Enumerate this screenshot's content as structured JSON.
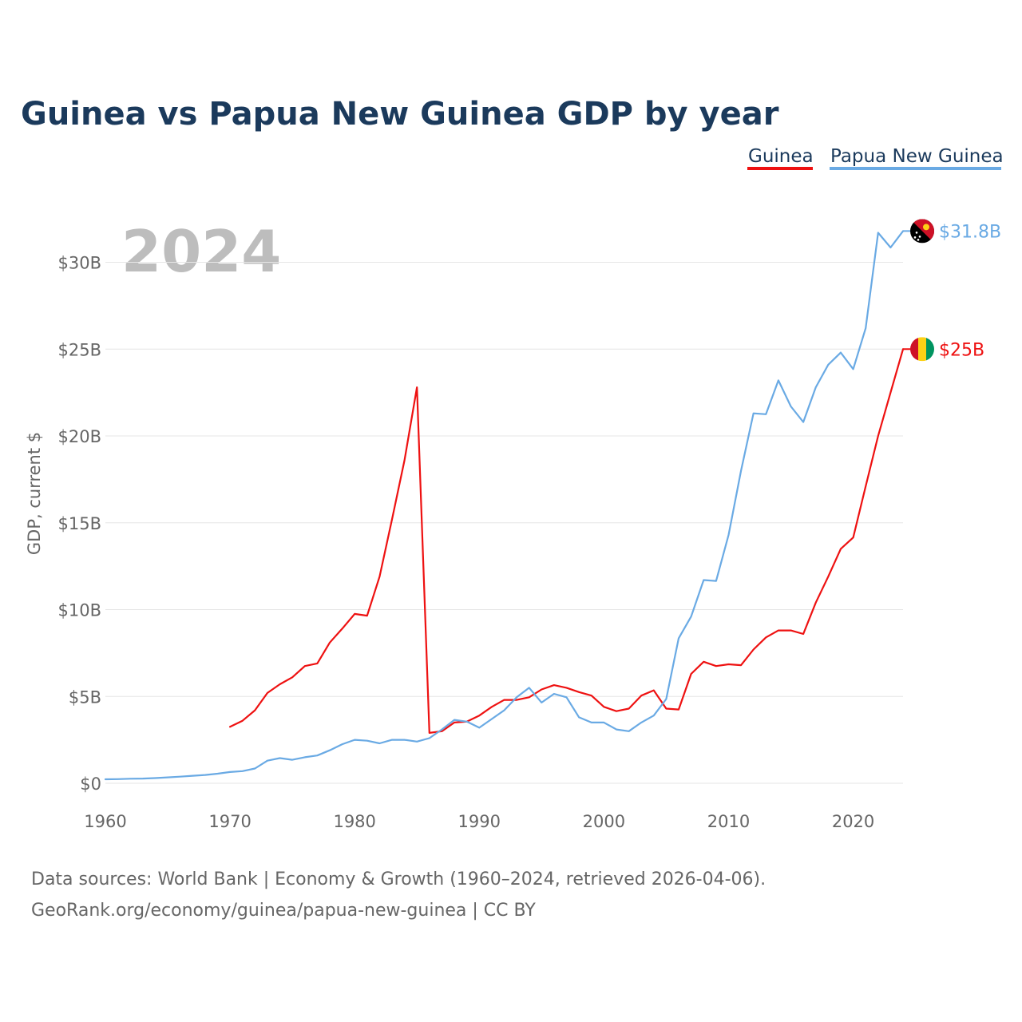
{
  "title": "Guinea vs Papua New Guinea GDP by year",
  "highlight_year": "2024",
  "footer": {
    "line1": "Data sources: World Bank | Economy & Growth (1960–2024, retrieved 2026-04-06).",
    "line2": "GeoRank.org/economy/guinea/papua-new-guinea | CC BY"
  },
  "colors": {
    "guinea": "#ee1111",
    "png": "#6aaae4",
    "title": "#1b3a5c",
    "grid": "#e6e6e6",
    "tick": "#666666"
  },
  "chart_data": {
    "type": "line",
    "title": "Guinea vs Papua New Guinea GDP by year",
    "xlabel": "",
    "ylabel": "GDP, current $",
    "xlim": [
      1960,
      2024
    ],
    "ylim": [
      0,
      32
    ],
    "x_ticks": [
      1960,
      1970,
      1980,
      1990,
      2000,
      2010,
      2020
    ],
    "x_tick_labels": [
      "1960",
      "1970",
      "1980",
      "1990",
      "2000",
      "2010",
      "2020"
    ],
    "y_ticks": [
      0,
      5,
      10,
      15,
      20,
      25,
      30
    ],
    "y_tick_labels": [
      "$0",
      "$5B",
      "$10B",
      "$15B",
      "$20B",
      "$25B",
      "$30B"
    ],
    "legend_position": "top-right",
    "units": "billions of current US$",
    "series": [
      {
        "name": "Guinea",
        "color": "#ee1111",
        "end_label": "$25B",
        "flag": "guinea",
        "x": [
          1970,
          1971,
          1972,
          1973,
          1974,
          1975,
          1976,
          1977,
          1978,
          1979,
          1980,
          1981,
          1982,
          1983,
          1984,
          1985,
          1986,
          1987,
          1988,
          1989,
          1990,
          1991,
          1992,
          1993,
          1994,
          1995,
          1996,
          1997,
          1998,
          1999,
          2000,
          2001,
          2002,
          2003,
          2004,
          2005,
          2006,
          2007,
          2008,
          2009,
          2010,
          2011,
          2012,
          2013,
          2014,
          2015,
          2016,
          2017,
          2018,
          2019,
          2020,
          2021,
          2022,
          2023,
          2024
        ],
        "values": [
          3.25,
          3.6,
          4.2,
          5.2,
          5.7,
          6.1,
          6.75,
          6.9,
          8.1,
          8.9,
          9.75,
          9.65,
          11.9,
          15.2,
          18.6,
          22.8,
          2.9,
          3.0,
          3.5,
          3.55,
          3.9,
          4.4,
          4.8,
          4.8,
          4.95,
          5.4,
          5.65,
          5.5,
          5.25,
          5.05,
          4.4,
          4.15,
          4.3,
          5.05,
          5.35,
          4.3,
          4.25,
          6.3,
          7.0,
          6.75,
          6.85,
          6.8,
          7.7,
          8.4,
          8.8,
          8.8,
          8.6,
          10.4,
          11.9,
          13.5,
          14.15,
          17.1,
          20.0,
          22.5,
          25.0
        ]
      },
      {
        "name": "Papua New Guinea",
        "color": "#6aaae4",
        "end_label": "$31.8B",
        "flag": "papua-new-guinea",
        "x": [
          1960,
          1961,
          1962,
          1963,
          1964,
          1965,
          1966,
          1967,
          1968,
          1969,
          1970,
          1971,
          1972,
          1973,
          1974,
          1975,
          1976,
          1977,
          1978,
          1979,
          1980,
          1981,
          1982,
          1983,
          1984,
          1985,
          1986,
          1987,
          1988,
          1989,
          1990,
          1991,
          1992,
          1993,
          1994,
          1995,
          1996,
          1997,
          1998,
          1999,
          2000,
          2001,
          2002,
          2003,
          2004,
          2005,
          2006,
          2007,
          2008,
          2009,
          2010,
          2011,
          2012,
          2013,
          2014,
          2015,
          2016,
          2017,
          2018,
          2019,
          2020,
          2021,
          2022,
          2023,
          2024
        ],
        "values": [
          0.23,
          0.24,
          0.26,
          0.27,
          0.3,
          0.34,
          0.38,
          0.43,
          0.48,
          0.55,
          0.65,
          0.7,
          0.85,
          1.3,
          1.45,
          1.35,
          1.5,
          1.6,
          1.9,
          2.25,
          2.5,
          2.45,
          2.3,
          2.5,
          2.5,
          2.4,
          2.6,
          3.1,
          3.65,
          3.55,
          3.2,
          3.7,
          4.2,
          4.95,
          5.5,
          4.65,
          5.15,
          4.95,
          3.8,
          3.5,
          3.5,
          3.1,
          3.0,
          3.5,
          3.9,
          4.85,
          8.35,
          9.6,
          11.7,
          11.65,
          14.3,
          18.0,
          21.3,
          21.25,
          23.2,
          21.7,
          20.8,
          22.8,
          24.1,
          24.8,
          23.85,
          26.2,
          31.7,
          30.85,
          31.8
        ]
      }
    ]
  }
}
